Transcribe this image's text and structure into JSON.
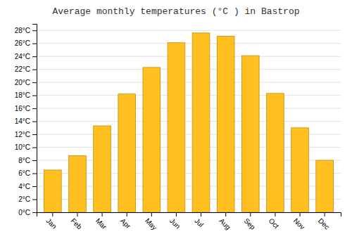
{
  "chart_data": {
    "type": "bar",
    "title": "Average monthly temperatures (°C ) in Bastrop",
    "categories": [
      "Jan",
      "Feb",
      "Mar",
      "Apr",
      "May",
      "Jun",
      "Jul",
      "Aug",
      "Sep",
      "Oct",
      "Nov",
      "Dec"
    ],
    "values": [
      6.5,
      8.7,
      13.3,
      18.2,
      22.3,
      26.1,
      27.6,
      27.1,
      24.1,
      18.3,
      13.0,
      8.0
    ],
    "color": "#FFC020",
    "ylim": [
      0,
      29
    ],
    "yticks": [
      {
        "value": 0,
        "label": "0°C"
      },
      {
        "value": 2,
        "label": "2°C"
      },
      {
        "value": 4,
        "label": "4°C"
      },
      {
        "value": 6,
        "label": "6°C"
      },
      {
        "value": 8,
        "label": "8°C"
      },
      {
        "value": 10,
        "label": "10°C"
      },
      {
        "value": 12,
        "label": "12°C"
      },
      {
        "value": 14,
        "label": "14°C"
      },
      {
        "value": 16,
        "label": "16°C"
      },
      {
        "value": 18,
        "label": "18°C"
      },
      {
        "value": 20,
        "label": "20°C"
      },
      {
        "value": 22,
        "label": "22°C"
      },
      {
        "value": 24,
        "label": "24°C"
      },
      {
        "value": 26,
        "label": "26°C"
      },
      {
        "value": 28,
        "label": "28°C"
      }
    ],
    "grid": true
  }
}
